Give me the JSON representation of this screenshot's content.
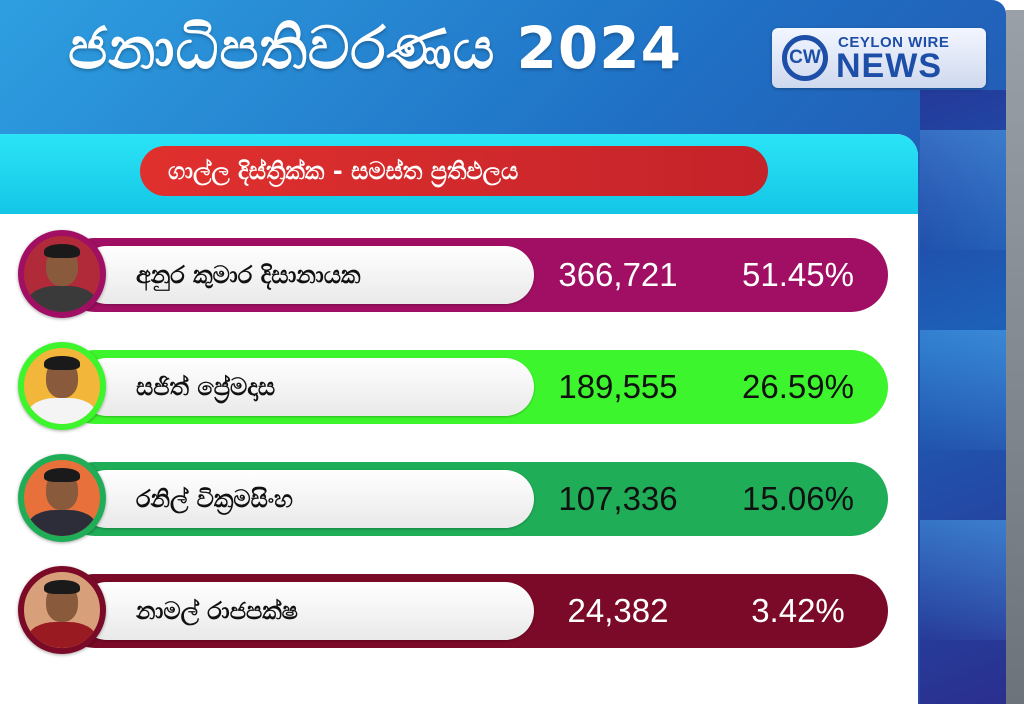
{
  "title": "ජනාධිපතිවරණය 2024",
  "logo": {
    "mark": "CW",
    "top_text": "CEYLON WIRE",
    "bottom_text": "NEWS"
  },
  "district_label": "ගාල්ල  දිස්ත්‍රික්ක -  සමස්ත ප්‍රතිඵලය",
  "candidates": [
    {
      "name": "අනුර කුමාර දිසානායක",
      "votes": "366,721",
      "percent": "51.45%",
      "fraction": 0.5145,
      "bar_color": "#a00f63",
      "text_color": "#ffffff",
      "ring_color": "#a00f63",
      "avatar_bg": "#b02a3a",
      "shirt_color": "#3a3a3a"
    },
    {
      "name": "සජිත් ප්‍රේමදාස",
      "votes": "189,555",
      "percent": "26.59%",
      "fraction": 0.2659,
      "bar_color": "#3df52c",
      "text_color": "#111111",
      "ring_color": "#3df52c",
      "avatar_bg": "#f2b63a",
      "shirt_color": "#f4f4f4"
    },
    {
      "name": "රනිල් වික්‍රමසිංහ",
      "votes": "107,336",
      "percent": "15.06%",
      "fraction": 0.1506,
      "bar_color": "#1fad57",
      "text_color": "#111111",
      "ring_color": "#1fad57",
      "avatar_bg": "#e8703a",
      "shirt_color": "#2d2d3a"
    },
    {
      "name": "නාමල් රාජපක්ෂ",
      "votes": "24,382",
      "percent": "3.42%",
      "fraction": 0.0342,
      "bar_color": "#7a0a27",
      "text_color": "#ffffff",
      "ring_color": "#7a0a27",
      "avatar_bg": "#d8a07a",
      "shirt_color": "#9a1a22"
    }
  ]
}
